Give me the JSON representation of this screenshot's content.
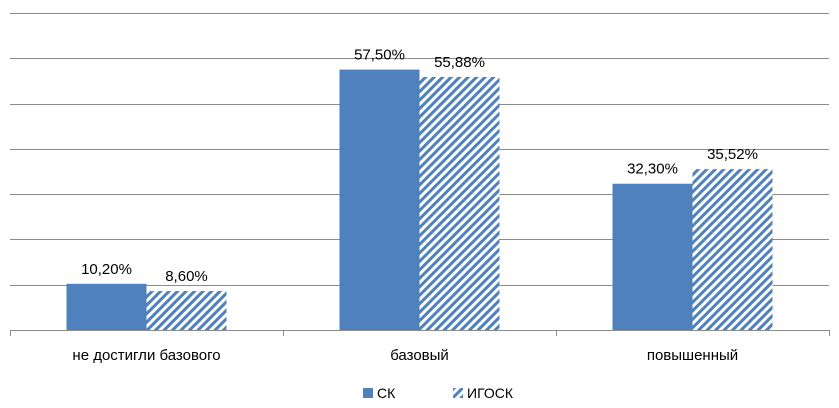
{
  "chart_data": {
    "type": "bar",
    "title": "",
    "xlabel": "",
    "ylabel": "",
    "categories": [
      "не достигли базового",
      "базовый",
      "повышенный"
    ],
    "series": [
      {
        "name": "СК",
        "values": [
          10.2,
          57.5,
          32.3
        ],
        "labels": [
          "10,20%",
          "57,50%",
          "32,30%"
        ],
        "color": "#4F81BD",
        "pattern": "solid"
      },
      {
        "name": "ИГОСК",
        "values": [
          8.6,
          55.88,
          35.52
        ],
        "labels": [
          "8,60%",
          "55,88%",
          "35,52%"
        ],
        "color": "#4F81BD",
        "pattern": "diagonal-stripes"
      }
    ],
    "ylim": [
      0,
      70
    ],
    "ytick_step": 10,
    "grid": true,
    "y_axis_labels_visible": false,
    "legend_position": "bottom-center"
  }
}
